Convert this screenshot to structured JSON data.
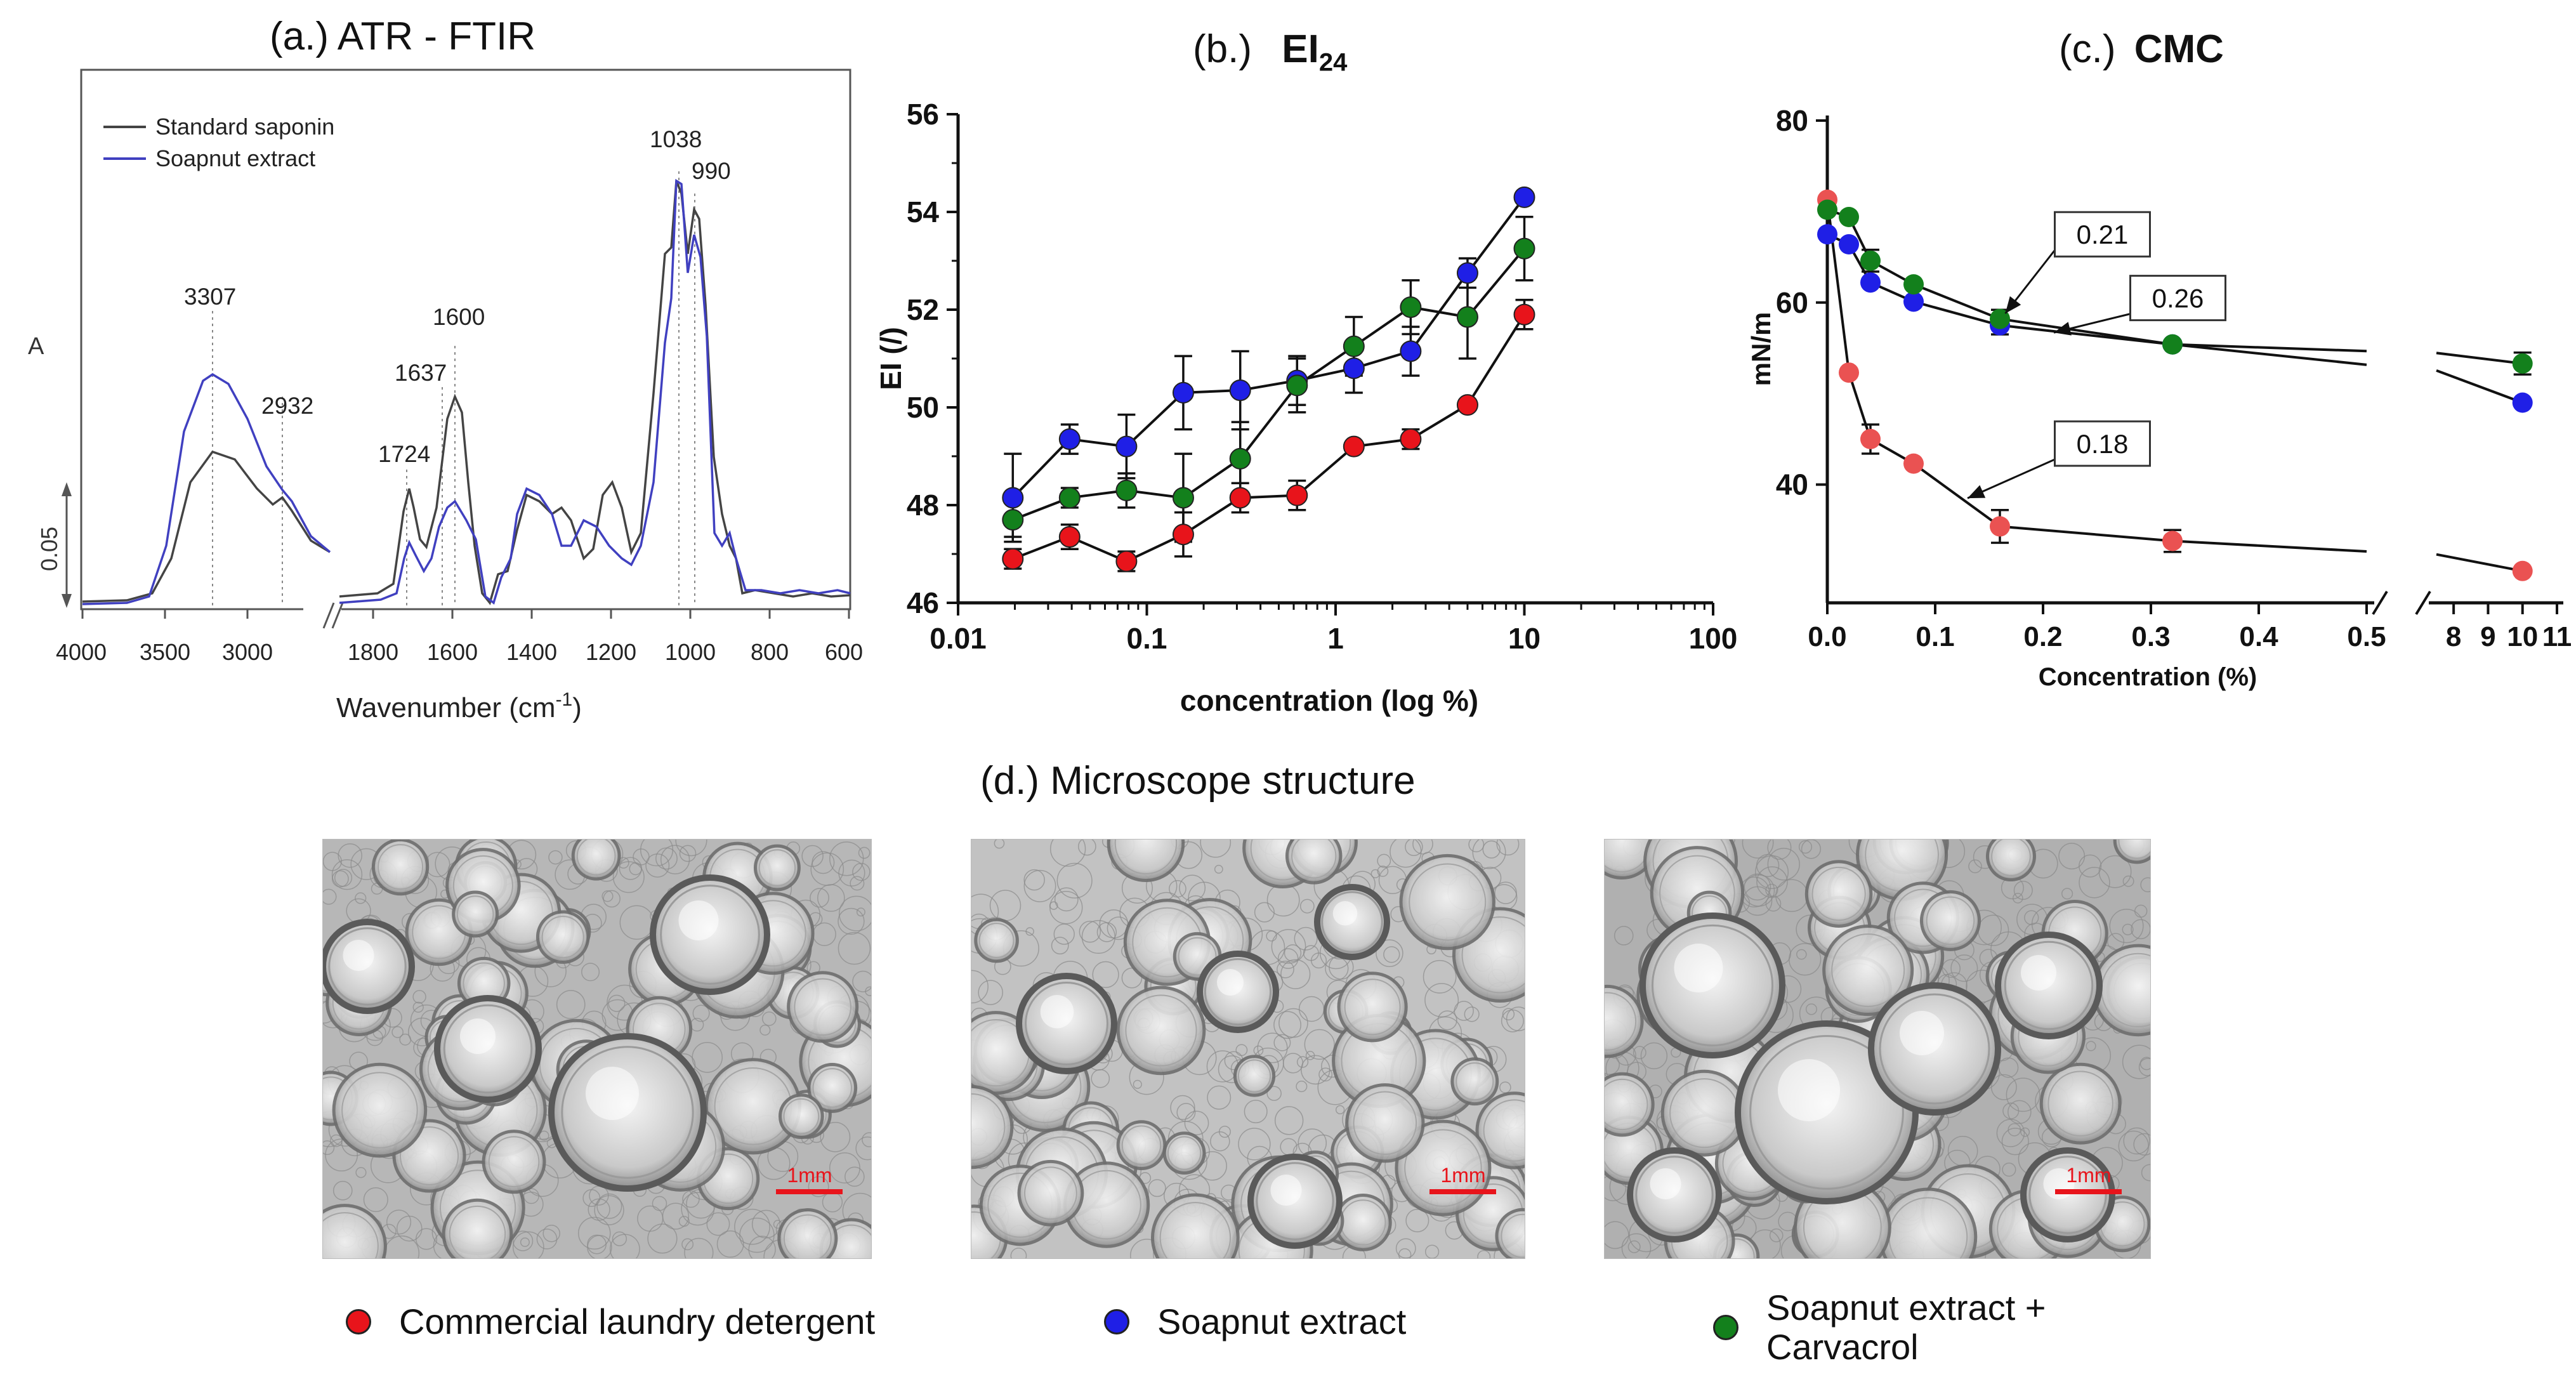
{
  "figure": {
    "panel_a_title": "(a.)  ATR - FTIR",
    "panel_b_title_prefix": "(b.)",
    "panel_b_title_main": "EI",
    "panel_b_title_sub": "24",
    "panel_c_title_prefix": "(c.)",
    "panel_c_title_main": "CMC",
    "panel_d_title": "(d.) Microscope structure",
    "scale_bar_label": "1mm"
  },
  "legend": [
    {
      "label": "Commercial laundry detergent",
      "color": "#e8141b"
    },
    {
      "label": "Soapnut  extract",
      "color": "#1f1fe6"
    },
    {
      "label": "Soapnut extract +",
      "label2": "Carvacrol",
      "color": "#13801c"
    }
  ],
  "chart_data": [
    {
      "type": "line",
      "panel": "a",
      "xlabel": "Wavenumber (cm",
      "xlabel_sup": "-1",
      "xlabel_end": ")",
      "ylabel": "A",
      "scale_label": "0.05",
      "x_ticks_left": [
        "4000",
        "3500",
        "3000"
      ],
      "x_ticks_right": [
        "1800",
        "1600",
        "1400",
        "1200",
        "1000",
        "800",
        "600"
      ],
      "legend": [
        "Standard saponin",
        "Soapnut extract"
      ],
      "colors": [
        "#444444",
        "#4040c0"
      ],
      "peak_labels": [
        "3307",
        "2932",
        "1724",
        "1637",
        "1600",
        "1038",
        "990"
      ]
    },
    {
      "type": "line",
      "panel": "b",
      "xscale": "log",
      "xlim": [
        0.01,
        100
      ],
      "ylim": [
        46,
        56
      ],
      "xlabel": "concentration (log %)",
      "ylabel": "EI (/)",
      "x_ticks": [
        "0.01",
        "0.1",
        "1",
        "10",
        "100"
      ],
      "y_ticks": [
        "46",
        "48",
        "50",
        "52",
        "54",
        "56"
      ],
      "x": [
        0.0195,
        0.039,
        0.078,
        0.156,
        0.3125,
        0.625,
        1.25,
        2.5,
        5,
        10
      ],
      "series": [
        {
          "name": "Commercial laundry detergent",
          "color": "#e8141b",
          "values": [
            46.9,
            47.35,
            46.85,
            47.4,
            48.15,
            48.2,
            49.2,
            49.35,
            50.05,
            51.9
          ],
          "err": [
            0.2,
            0.25,
            0.2,
            0.45,
            0.3,
            0.3,
            0.05,
            0.2,
            0.05,
            0.3
          ]
        },
        {
          "name": "Soapnut  extract",
          "color": "#1f1fe6",
          "values": [
            48.15,
            49.35,
            49.2,
            50.3,
            50.35,
            50.55,
            50.8,
            51.15,
            52.75,
            54.3
          ],
          "err": [
            0.9,
            0.3,
            0.65,
            0.75,
            0.8,
            0.5,
            0.5,
            0.5,
            0.3,
            0.05
          ]
        },
        {
          "name": "Soapnut extract + Carvacrol",
          "color": "#13801c",
          "values": [
            47.7,
            48.15,
            48.3,
            48.15,
            48.95,
            50.45,
            51.25,
            52.05,
            51.85,
            53.25
          ],
          "err": [
            0.35,
            0.2,
            0.35,
            0.9,
            0.75,
            0.55,
            0.6,
            0.55,
            0.85,
            0.65
          ]
        }
      ]
    },
    {
      "type": "line",
      "panel": "c",
      "xlabel": "Concentration (%)",
      "ylabel": "mN/m",
      "ylim": [
        27,
        80
      ],
      "x_ticks_left": [
        "0.0",
        "0.1",
        "0.2",
        "0.3",
        "0.4",
        "0.5"
      ],
      "x_ticks_right": [
        "8",
        "9",
        "10",
        "11"
      ],
      "y_ticks": [
        "40",
        "60",
        "80"
      ],
      "x": [
        0.0,
        0.02,
        0.04,
        0.08,
        0.16,
        0.32
      ],
      "x_far": 10,
      "series": [
        {
          "name": "Commercial laundry detergent",
          "color": "#ea5252",
          "values": [
            71.3,
            52.3,
            45.0,
            42.3,
            35.4,
            33.8
          ],
          "err": [
            0,
            0,
            1.6,
            0,
            1.8,
            1.2
          ],
          "far_value": 30.5,
          "far_err": 0
        },
        {
          "name": "Soapnut  extract",
          "color": "#1f1fe6",
          "values": [
            67.5,
            66.4,
            62.2,
            60.1,
            57.5,
            55.4
          ],
          "err": [
            0,
            0,
            0,
            0,
            1.0,
            0
          ],
          "far_value": 49.0,
          "far_err": 0
        },
        {
          "name": "Soapnut extract + Carvacrol",
          "color": "#13801c",
          "values": [
            70.2,
            69.4,
            64.6,
            62.0,
            58.2,
            55.4
          ],
          "err": [
            0,
            0,
            1.2,
            0,
            1.0,
            0
          ],
          "far_value": 53.3,
          "far_err": 1.2
        }
      ],
      "annotations": [
        "0.21",
        "0.26",
        "0.18"
      ]
    }
  ]
}
